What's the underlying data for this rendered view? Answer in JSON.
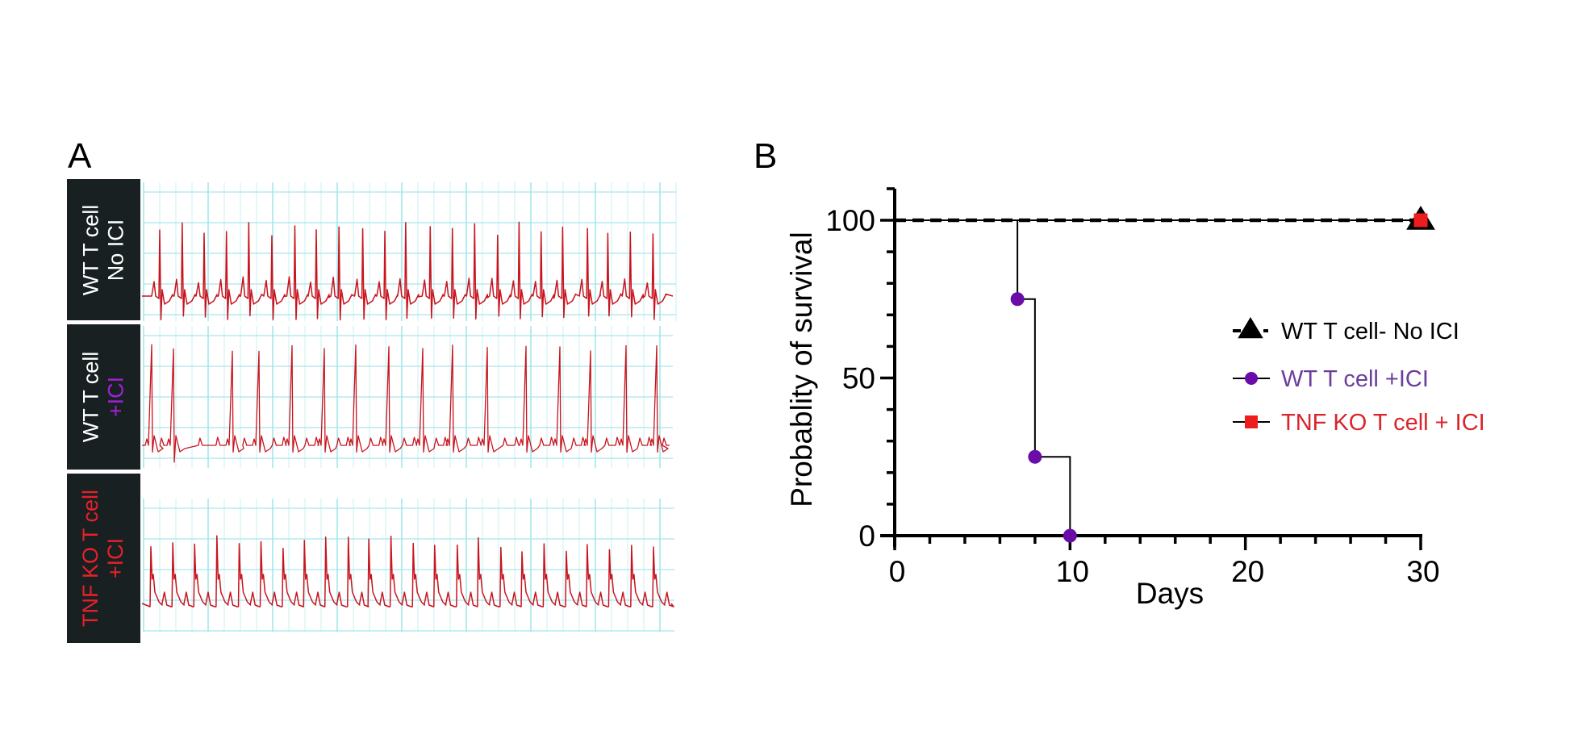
{
  "figure": {
    "panel_a_letter": "A",
    "panel_b_letter": "B"
  },
  "panel_a": {
    "description": "ECG tracings",
    "rows": [
      {
        "id": "wt-no-ici",
        "label_line1": "WT T cell",
        "label_line2": "No ICI",
        "line1_color": "#ffffff",
        "line2_color": "#ffffff",
        "rhythm": "regular-fast",
        "beat_count": 23
      },
      {
        "id": "wt-ici",
        "label_line1": "WT T cell",
        "label_line2": "+ICI",
        "line1_color": "#ffffff",
        "line2_color": "#a020d8",
        "rhythm": "irregular-slow",
        "beat_count": 14
      },
      {
        "id": "tnfko-ici",
        "label_line1": "TNF KO T cell",
        "label_line2": "+ICI",
        "line1_color": "#e8202a",
        "line2_color": "#e8202a",
        "rhythm": "regular",
        "beat_count": 24
      }
    ],
    "trace_color": "#c8141e",
    "grid_color": "#9ee6ea"
  },
  "chart_data": {
    "type": "line",
    "subtype": "kaplan-meier-step",
    "title": "",
    "xlabel": "Days",
    "ylabel": "Probablity of survival",
    "xlim": [
      0,
      30
    ],
    "ylim": [
      0,
      110
    ],
    "x_ticks": [
      0,
      10,
      20,
      30
    ],
    "x_tick_labels": [
      "0",
      "10",
      "20",
      "30"
    ],
    "x_minor_step": 2,
    "y_ticks": [
      0,
      50,
      100
    ],
    "y_tick_labels": [
      "0",
      "50",
      "100"
    ],
    "y_minor_step": 10,
    "grid": false,
    "legend_position": "right",
    "series": [
      {
        "name": "WT T cell- No ICI",
        "color": "#000000",
        "text_color": "#000000",
        "marker": "triangle",
        "line_style": "dashed",
        "x": [
          0,
          30
        ],
        "y": [
          100,
          100
        ]
      },
      {
        "name": "WT T cell +ICI",
        "color": "#6a0ca8",
        "text_color": "#6b3d9c",
        "marker": "circle",
        "line_style": "solid",
        "line_color": "#000000",
        "x": [
          0,
          7,
          8,
          10
        ],
        "y": [
          100,
          75,
          25,
          0
        ]
      },
      {
        "name": "TNF KO T cell + ICI",
        "color": "#ee1c1c",
        "text_color": "#d9252b",
        "marker": "square",
        "line_style": "solid",
        "line_color": "#000000",
        "x": [
          0,
          30
        ],
        "y": [
          100,
          100
        ]
      }
    ]
  }
}
